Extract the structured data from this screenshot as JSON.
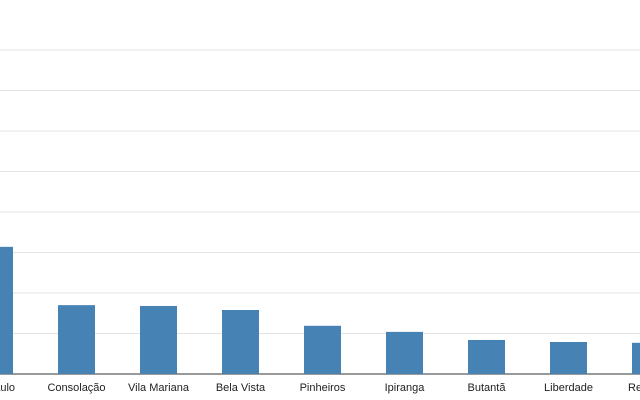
{
  "chart_data": {
    "type": "bar",
    "categories": [
      "aulo",
      "Consolação",
      "Vila Mariana",
      "Bela Vista",
      "Pinheiros",
      "Ipiranga",
      "Butantã",
      "Liberdade",
      "Re"
    ],
    "values": [
      3.14,
      1.7,
      1.68,
      1.58,
      1.19,
      1.04,
      0.84,
      0.79,
      0.77
    ],
    "color": "#4682b4",
    "ylim": [
      0,
      9
    ],
    "yticks": [
      0,
      1,
      2,
      3,
      4,
      5,
      6,
      7,
      8
    ],
    "grid": true
  }
}
